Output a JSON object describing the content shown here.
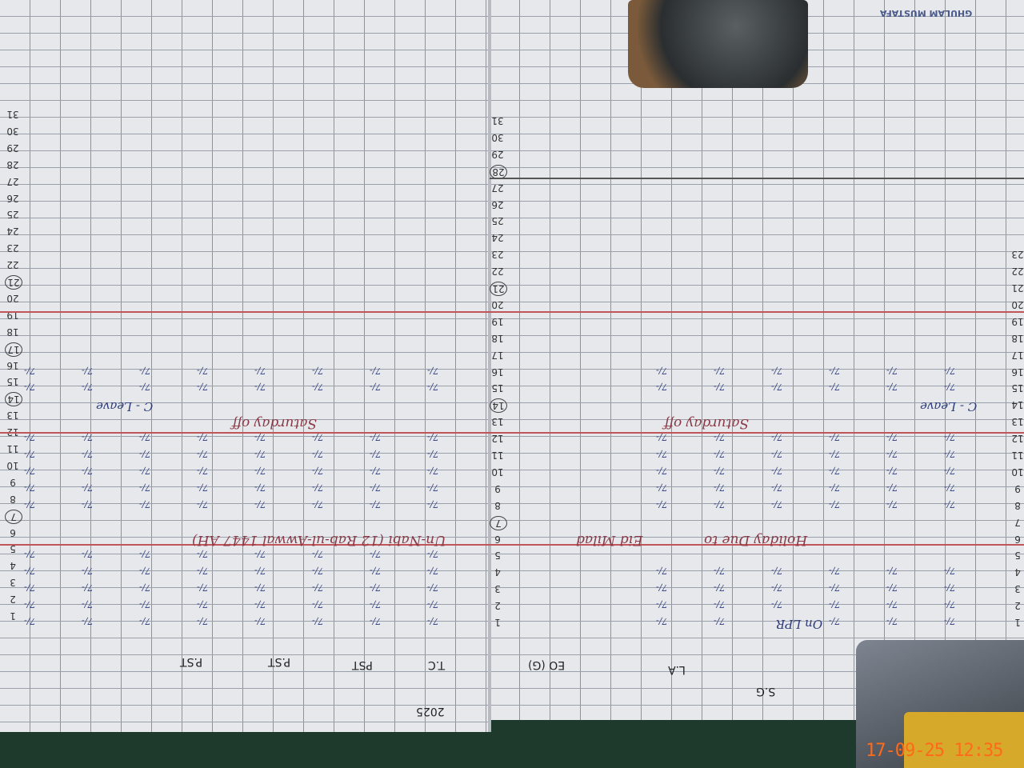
{
  "register": {
    "days": [
      1,
      2,
      3,
      4,
      5,
      6,
      7,
      8,
      9,
      10,
      11,
      12,
      13,
      14,
      15,
      16,
      17,
      18,
      19,
      20,
      21,
      22,
      23,
      24,
      25,
      26,
      27,
      28,
      29,
      30,
      31
    ],
    "circled_days_right": [
      7,
      14,
      21,
      28
    ],
    "circled_days_left": [
      7,
      14,
      17,
      21
    ],
    "year": "2025",
    "right_page": {
      "column_headers": [
        "S.G",
        "L.A",
        "EO (G)"
      ],
      "notes": {
        "on_lpr": "On LPR",
        "leave": "C - Leave",
        "holiday": "Holiday Due to",
        "eid": "Eid Milad",
        "saturday": "Saturday off",
        "time_sample": "7/-"
      }
    },
    "left_page": {
      "column_headers": [
        "T.C",
        "PST",
        "P.ST",
        "P.ST"
      ],
      "notes": {
        "nabi": "Un-Nabi (12 Rab-ul-Awwal 1447 AH)",
        "saturday": "Saturday off",
        "leave": "C - Leave"
      }
    },
    "stamp": "GHULAM MUSTAFA"
  },
  "camera_timestamp": "17-09-25 12:35",
  "colors": {
    "paper": "#e6e8ec",
    "ink_blue": "#2c3b7a",
    "ink_red": "#8a3a46",
    "timestamp": "#ff6a1a",
    "background": "#1e3a2c"
  }
}
